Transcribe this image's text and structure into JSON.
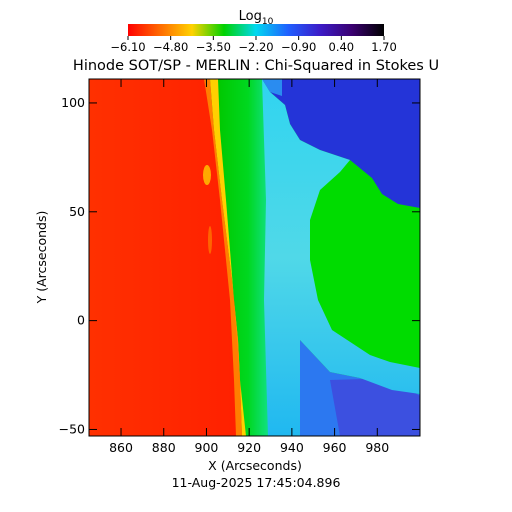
{
  "chart_data": {
    "type": "heatmap",
    "title": "Hinode SOT/SP - MERLIN : Chi-Squared in Stokes U",
    "xlabel": "X (Arcseconds)",
    "ylabel": "Y (Arcseconds)",
    "xlim": [
      845,
      1000
    ],
    "ylim": [
      -53,
      111
    ],
    "x_ticks": [
      860,
      880,
      900,
      920,
      940,
      960,
      980
    ],
    "y_ticks": [
      -50,
      0,
      50,
      100
    ],
    "grid": false,
    "colorbar": {
      "title": "Log",
      "title_subscript": "10",
      "range": [
        -6.1,
        1.7
      ],
      "tick_values": [
        -6.1,
        -4.8,
        -3.5,
        -2.2,
        -0.9,
        0.4,
        1.7
      ],
      "tick_labels": [
        "−6.10",
        "−4.80",
        "−3.50",
        "−2.20",
        "−0.90",
        "0.40",
        "1.70"
      ],
      "colormap": [
        "#ff0000",
        "#ff6a00",
        "#ffd200",
        "#00d200",
        "#00d8f0",
        "#2060ff",
        "#3c1cc8",
        "#3a0070",
        "#000000"
      ]
    },
    "regions": [
      {
        "name": "solar disk",
        "log10_chi2": -6.1,
        "color": "#ff2600"
      },
      {
        "name": "limb",
        "log10_chi2": -4.8,
        "color": "#ffd400"
      },
      {
        "name": "near-limb band",
        "log10_chi2": -2.2,
        "color": "#00d200"
      },
      {
        "name": "off-limb low corona",
        "log10_chi2": -1.4,
        "color": "#3fd0ee"
      },
      {
        "name": "outer field",
        "log10_chi2": -2.2,
        "color": "#00dc00"
      },
      {
        "name": "upper-right corner",
        "log10_chi2": 0.4,
        "color": "#2434d8"
      }
    ],
    "timestamp": "11-Aug-2025 17:45:04.896"
  }
}
